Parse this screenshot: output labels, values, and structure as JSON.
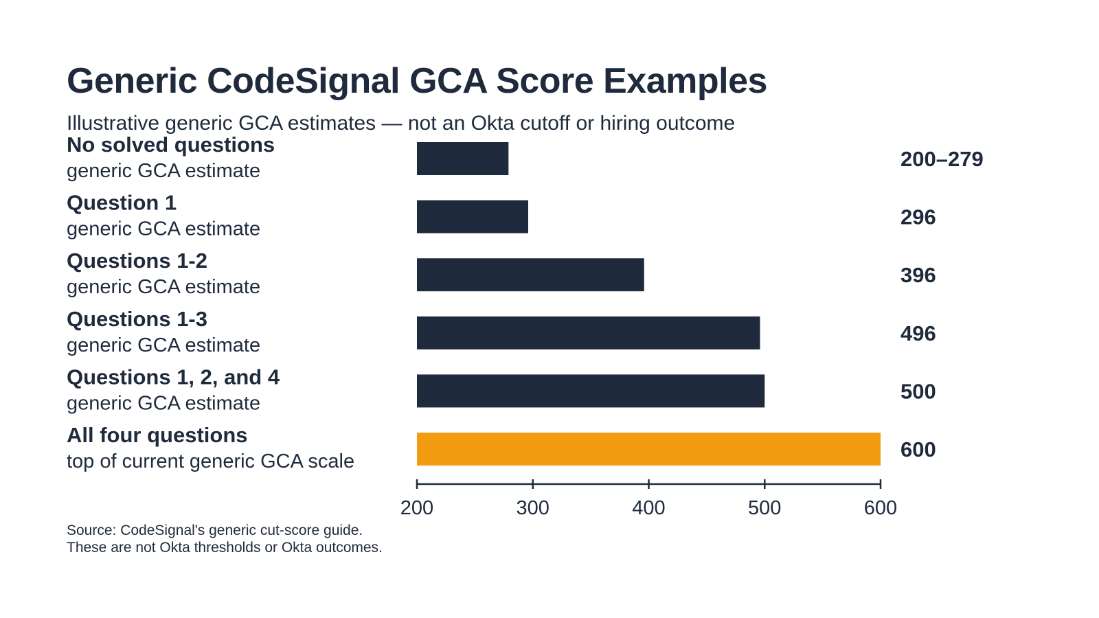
{
  "chart_data": {
    "type": "bar",
    "orientation": "horizontal",
    "title": "Generic CodeSignal GCA Score Examples",
    "subtitle": "Illustrative generic GCA estimates — not an Okta cutoff or hiring outcome",
    "categories": [
      {
        "label": "No solved questions",
        "sublabel": "generic GCA estimate",
        "value": 279,
        "value_label": "200–279",
        "highlight": false
      },
      {
        "label": "Question 1",
        "sublabel": "generic GCA estimate",
        "value": 296,
        "value_label": "296",
        "highlight": false
      },
      {
        "label": "Questions 1-2",
        "sublabel": "generic GCA estimate",
        "value": 396,
        "value_label": "396",
        "highlight": false
      },
      {
        "label": "Questions 1-3",
        "sublabel": "generic GCA estimate",
        "value": 496,
        "value_label": "496",
        "highlight": false
      },
      {
        "label": "Questions 1, 2, and 4",
        "sublabel": "generic GCA estimate",
        "value": 500,
        "value_label": "500",
        "highlight": false
      },
      {
        "label": "All four questions",
        "sublabel": "top of current generic GCA scale",
        "value": 600,
        "value_label": "600",
        "highlight": true
      }
    ],
    "xlim": [
      200,
      600
    ],
    "ticks": [
      "200",
      "300",
      "400",
      "500",
      "600"
    ],
    "grid": false,
    "colors": {
      "bar": "#1f2a3c",
      "highlight": "#f39c12",
      "text": "#1f2a3c"
    }
  },
  "source": {
    "line1": "Source: CodeSignal's generic cut-score guide.",
    "line2": "These are not Okta thresholds or Okta outcomes."
  }
}
